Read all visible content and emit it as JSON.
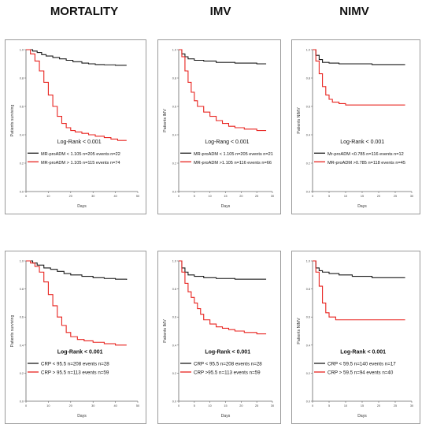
{
  "columns": [
    {
      "title": "MORTALITY"
    },
    {
      "title": "IMV"
    },
    {
      "title": "NIMV"
    }
  ],
  "colors": {
    "low": "#1a1a1a",
    "high": "#e8231f"
  },
  "chart_data": [
    {
      "type": "line",
      "row": 0,
      "col": 0,
      "xlabel": "Days",
      "ylabel": "Patients surviving",
      "xlim": [
        0,
        50
      ],
      "ylim": [
        0,
        1.0
      ],
      "xticks": [
        "0",
        "10",
        "20",
        "30",
        "40",
        "50"
      ],
      "yticks": [
        "0.0",
        "0.2",
        "0.4",
        "0.6",
        "0.8",
        "1.0"
      ],
      "stat": "Log-Rank < 0.001",
      "series": [
        {
          "name": "MR-proADM < 1.105 n=205  events n=22",
          "color": "#1a1a1a",
          "x": [
            0,
            3,
            5,
            7,
            9,
            12,
            15,
            18,
            21,
            25,
            28,
            31,
            35,
            40,
            45
          ],
          "y": [
            1.0,
            0.99,
            0.98,
            0.965,
            0.955,
            0.945,
            0.935,
            0.925,
            0.915,
            0.905,
            0.9,
            0.895,
            0.893,
            0.89,
            0.89
          ]
        },
        {
          "name": "MR-proADM > 1.105 n=115  events n=74",
          "color": "#e8231f",
          "x": [
            0,
            2,
            4,
            6,
            8,
            10,
            12,
            14,
            16,
            18,
            20,
            22,
            25,
            28,
            31,
            35,
            38,
            41,
            45
          ],
          "y": [
            1.0,
            0.97,
            0.92,
            0.85,
            0.77,
            0.68,
            0.6,
            0.53,
            0.48,
            0.45,
            0.43,
            0.42,
            0.41,
            0.4,
            0.39,
            0.38,
            0.37,
            0.36,
            0.36
          ]
        }
      ]
    },
    {
      "type": "line",
      "row": 0,
      "col": 1,
      "xlabel": "Days",
      "ylabel": "Patients IMV",
      "xlim": [
        0,
        30
      ],
      "ylim": [
        0,
        1.0
      ],
      "xticks": [
        "0",
        "5",
        "10",
        "15",
        "20",
        "25",
        "30"
      ],
      "yticks": [
        "0.0",
        "0.2",
        "0.4",
        "0.6",
        "0.8",
        "1.0"
      ],
      "stat": "Log-Rang < 0.001",
      "series": [
        {
          "name": "MR-proADM < 1.105 n=205  events n=21",
          "color": "#1a1a1a",
          "x": [
            0,
            1,
            2,
            3,
            5,
            8,
            12,
            18,
            25,
            28
          ],
          "y": [
            1.0,
            0.97,
            0.95,
            0.935,
            0.925,
            0.92,
            0.91,
            0.905,
            0.9,
            0.9
          ]
        },
        {
          "name": "MR-proADM >1.105 n=116  events n=66",
          "color": "#e8231f",
          "x": [
            0,
            1,
            2,
            3,
            4,
            5,
            6,
            8,
            10,
            12,
            14,
            16,
            18,
            21,
            25,
            28
          ],
          "y": [
            1.0,
            0.95,
            0.85,
            0.77,
            0.7,
            0.64,
            0.6,
            0.56,
            0.53,
            0.5,
            0.48,
            0.46,
            0.45,
            0.44,
            0.43,
            0.43
          ]
        }
      ]
    },
    {
      "type": "line",
      "row": 0,
      "col": 2,
      "xlabel": "Days",
      "ylabel": "Patients NIMV",
      "xlim": [
        0,
        30
      ],
      "ylim": [
        0,
        1.0
      ],
      "xticks": [
        "0",
        "5",
        "10",
        "15",
        "20",
        "25",
        "30"
      ],
      "yticks": [
        "0.0",
        "0.2",
        "0.4",
        "0.6",
        "0.8",
        "1.0"
      ],
      "stat": "Log-Rank  < 0.001",
      "series": [
        {
          "name": "Mr-proADM <0.785 n=116  events n=12",
          "color": "#1a1a1a",
          "x": [
            0,
            1,
            2,
            3,
            5,
            8,
            12,
            18,
            28
          ],
          "y": [
            1.0,
            0.96,
            0.93,
            0.91,
            0.905,
            0.9,
            0.9,
            0.895,
            0.895
          ]
        },
        {
          "name": "MR-proADM >0.785 n=118  events n=45",
          "color": "#e8231f",
          "x": [
            0,
            1,
            2,
            3,
            4,
            5,
            6,
            8,
            10,
            12,
            15,
            20,
            28
          ],
          "y": [
            1.0,
            0.92,
            0.83,
            0.74,
            0.68,
            0.65,
            0.63,
            0.62,
            0.61,
            0.61,
            0.61,
            0.61,
            0.61
          ]
        }
      ]
    },
    {
      "type": "line",
      "row": 1,
      "col": 0,
      "xlabel": "Days",
      "ylabel": "Patients surviving",
      "xlim": [
        0,
        50
      ],
      "ylim": [
        0,
        1.0
      ],
      "xticks": [
        "0",
        "10",
        "20",
        "30",
        "40",
        "50"
      ],
      "yticks": [
        "0.0",
        "0.2",
        "0.4",
        "0.6",
        "0.8",
        "1.0"
      ],
      "stat": "Log-Rank < 0.001",
      "series": [
        {
          "name": "CRP < 95.5 n=208  events n=28",
          "color": "#1a1a1a",
          "x": [
            0,
            3,
            5,
            8,
            11,
            14,
            17,
            20,
            25,
            30,
            35,
            40,
            45
          ],
          "y": [
            1.0,
            0.985,
            0.97,
            0.95,
            0.94,
            0.925,
            0.91,
            0.9,
            0.89,
            0.88,
            0.875,
            0.87,
            0.865
          ]
        },
        {
          "name": "CRP > 95.5 n=113  events n=59",
          "color": "#e8231f",
          "x": [
            0,
            2,
            4,
            6,
            8,
            10,
            12,
            14,
            16,
            18,
            20,
            23,
            26,
            30,
            35,
            40,
            45
          ],
          "y": [
            1.0,
            0.985,
            0.96,
            0.92,
            0.85,
            0.76,
            0.68,
            0.6,
            0.54,
            0.49,
            0.46,
            0.44,
            0.43,
            0.42,
            0.41,
            0.4,
            0.4
          ]
        }
      ]
    },
    {
      "type": "line",
      "row": 1,
      "col": 1,
      "xlabel": "Days",
      "ylabel": "Patients IMV",
      "xlim": [
        0,
        30
      ],
      "ylim": [
        0,
        1.0
      ],
      "xticks": [
        "0",
        "5",
        "10",
        "15",
        "20",
        "25",
        "30"
      ],
      "yticks": [
        "0.0",
        "0.2",
        "0.4",
        "0.6",
        "0.8",
        "1.0"
      ],
      "stat": "Log-Rank < 0.001",
      "series": [
        {
          "name": "CRP < 95.5 n=208  events n=28",
          "color": "#1a1a1a",
          "x": [
            0,
            1,
            2,
            3,
            5,
            8,
            12,
            18,
            28
          ],
          "y": [
            1.0,
            0.95,
            0.92,
            0.9,
            0.89,
            0.88,
            0.875,
            0.87,
            0.87
          ]
        },
        {
          "name": "CRP >95.5 n=113  events n=59",
          "color": "#e8231f",
          "x": [
            0,
            1,
            2,
            3,
            4,
            5,
            6,
            7,
            8,
            10,
            12,
            14,
            16,
            18,
            21,
            25,
            28
          ],
          "y": [
            1.0,
            0.92,
            0.84,
            0.78,
            0.74,
            0.7,
            0.66,
            0.62,
            0.58,
            0.55,
            0.53,
            0.52,
            0.51,
            0.5,
            0.49,
            0.48,
            0.48
          ]
        }
      ]
    },
    {
      "type": "line",
      "row": 1,
      "col": 2,
      "xlabel": "Days",
      "ylabel": "Patients NIMV",
      "xlim": [
        0,
        30
      ],
      "ylim": [
        0,
        1.0
      ],
      "xticks": [
        "0",
        "5",
        "10",
        "15",
        "20",
        "25",
        "30"
      ],
      "yticks": [
        "0.0",
        "0.2",
        "0.4",
        "0.6",
        "0.8",
        "1.0"
      ],
      "stat": "Log-Rank < 0.001",
      "series": [
        {
          "name": "CRP < 59.5 n=140  events n=17",
          "color": "#1a1a1a",
          "x": [
            0,
            1,
            2,
            3,
            5,
            8,
            12,
            18,
            28
          ],
          "y": [
            1.0,
            0.95,
            0.93,
            0.92,
            0.91,
            0.9,
            0.89,
            0.88,
            0.88
          ]
        },
        {
          "name": "CRP > 59.5 n=94  events n=40",
          "color": "#e8231f",
          "x": [
            0,
            1,
            2,
            3,
            4,
            5,
            7,
            10,
            15,
            28
          ],
          "y": [
            1.0,
            0.92,
            0.82,
            0.7,
            0.63,
            0.6,
            0.58,
            0.58,
            0.58,
            0.58
          ]
        }
      ]
    }
  ]
}
